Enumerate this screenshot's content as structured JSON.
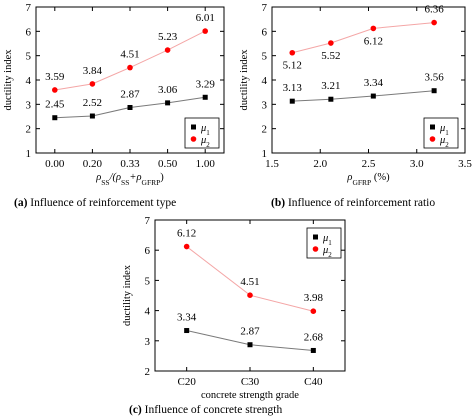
{
  "chart_data": [
    {
      "type": "line",
      "caption_letter": "(a)",
      "caption_text": " Influence of reinforcement type",
      "ylabel": "ductility index",
      "xlabel_parts": [
        "ρ",
        "SS",
        "/(ρ",
        "SS",
        "+ρ",
        "GFRP",
        ")"
      ],
      "categories": [
        "0.00",
        "0.20",
        "0.33",
        "0.50",
        "1.00"
      ],
      "x": [
        1,
        2,
        3,
        4,
        5
      ],
      "xlim": [
        0.5,
        5.5
      ],
      "ylim": [
        1,
        7
      ],
      "yticks": [
        1,
        2,
        3,
        4,
        5,
        6,
        7
      ],
      "xtick_pos": [
        1,
        2,
        3,
        4,
        5
      ],
      "legend_position": "bottom-right",
      "series": [
        {
          "name": "μ1",
          "label_main": "μ",
          "label_sub": "1",
          "color": "#000000",
          "marker": "square",
          "values": [
            2.45,
            2.52,
            2.87,
            3.06,
            3.29
          ],
          "labels": [
            "2.45",
            "2.52",
            "2.87",
            "3.06",
            "3.29"
          ]
        },
        {
          "name": "μ2",
          "label_main": "μ",
          "label_sub": "2",
          "color": "#ff0000",
          "marker": "circle",
          "values": [
            3.59,
            3.84,
            4.51,
            5.23,
            6.01
          ],
          "labels": [
            "3.59",
            "3.84",
            "4.51",
            "5.23",
            "6.01"
          ]
        }
      ]
    },
    {
      "type": "line",
      "caption_letter": "(b)",
      "caption_text": " Influence of reinforcement ratio",
      "ylabel": "ductility index",
      "xlabel_parts": [
        "ρ",
        "GFRP",
        " (%)"
      ],
      "categories": [
        "1.5",
        "2.0",
        "2.5",
        "3.0",
        "3.5"
      ],
      "x": [
        1.71,
        2.11,
        2.55,
        3.18
      ],
      "xlim": [
        1.5,
        3.5
      ],
      "ylim": [
        1,
        7
      ],
      "yticks": [
        1,
        2,
        3,
        4,
        5,
        6,
        7
      ],
      "xtick_pos": [
        1.5,
        2.0,
        2.5,
        3.0,
        3.5
      ],
      "legend_position": "bottom-right",
      "series": [
        {
          "name": "μ1",
          "label_main": "μ",
          "label_sub": "1",
          "color": "#000000",
          "marker": "square",
          "values": [
            3.13,
            3.21,
            3.34,
            3.56
          ],
          "labels": [
            "3.13",
            "3.21",
            "3.34",
            "3.56"
          ]
        },
        {
          "name": "μ2",
          "label_main": "μ",
          "label_sub": "2",
          "color": "#ff0000",
          "marker": "circle",
          "values": [
            5.12,
            5.52,
            6.12,
            6.36
          ],
          "labels": [
            "5.12",
            "5.52",
            "6.12",
            "6.36"
          ]
        }
      ]
    },
    {
      "type": "line",
      "caption_letter": "(c)",
      "caption_text": " Influence of concrete strength",
      "ylabel": "ductility index",
      "xlabel_parts": [
        "concrete strength grade"
      ],
      "categories": [
        "C20",
        "C30",
        "C40"
      ],
      "x": [
        1,
        2,
        3
      ],
      "xlim": [
        0.5,
        3.5
      ],
      "ylim": [
        2,
        7
      ],
      "yticks": [
        2,
        3,
        4,
        5,
        6,
        7
      ],
      "xtick_pos": [
        1,
        2,
        3
      ],
      "legend_position": "top-right",
      "series": [
        {
          "name": "μ1",
          "label_main": "μ",
          "label_sub": "1",
          "color": "#000000",
          "marker": "square",
          "values": [
            3.34,
            2.87,
            2.68
          ],
          "labels": [
            "3.34",
            "2.87",
            "2.68"
          ]
        },
        {
          "name": "μ2",
          "label_main": "μ",
          "label_sub": "2",
          "color": "#ff0000",
          "marker": "circle",
          "values": [
            6.12,
            4.51,
            3.98
          ],
          "labels": [
            "6.12",
            "4.51",
            "3.98"
          ]
        }
      ]
    }
  ]
}
